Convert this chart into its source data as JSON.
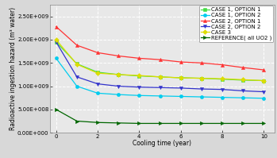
{
  "x": [
    0,
    1,
    2,
    3,
    4,
    5,
    6,
    7,
    8,
    9,
    10
  ],
  "case1_opt1": [
    1950000000.0,
    1480000000.0,
    1300000000.0,
    1250000000.0,
    1220000000.0,
    1200000000.0,
    1180000000.0,
    1170000000.0,
    1150000000.0,
    1130000000.0,
    1120000000.0
  ],
  "case1_opt2": [
    1600000000.0,
    1000000000.0,
    850000000.0,
    820000000.0,
    800000000.0,
    790000000.0,
    780000000.0,
    770000000.0,
    760000000.0,
    750000000.0,
    740000000.0
  ],
  "case2_opt1": [
    2280000000.0,
    1880000000.0,
    1720000000.0,
    1650000000.0,
    1600000000.0,
    1570000000.0,
    1520000000.0,
    1500000000.0,
    1460000000.0,
    1400000000.0,
    1350000000.0
  ],
  "case2_opt2": [
    1950000000.0,
    1200000000.0,
    1050000000.0,
    1000000000.0,
    980000000.0,
    970000000.0,
    960000000.0,
    940000000.0,
    930000000.0,
    900000000.0,
    880000000.0
  ],
  "case3": [
    2000000000.0,
    1470000000.0,
    1280000000.0,
    1250000000.0,
    1230000000.0,
    1200000000.0,
    1180000000.0,
    1170000000.0,
    1160000000.0,
    1140000000.0,
    1120000000.0
  ],
  "reference": [
    500000000.0,
    250000000.0,
    220000000.0,
    210000000.0,
    200000000.0,
    200000000.0,
    200000000.0,
    200000000.0,
    200000000.0,
    200000000.0,
    200000000.0
  ],
  "colors": {
    "case1_opt1": "#44dd44",
    "case1_opt2": "#00ccee",
    "case2_opt1": "#ff3333",
    "case2_opt2": "#3333cc",
    "case3": "#dddd00",
    "reference": "#006600"
  },
  "markers": {
    "case1_opt1": "s",
    "case1_opt2": "o",
    "case2_opt1": "^",
    "case2_opt2": "v",
    "case3": "D",
    "reference": ">"
  },
  "labels": {
    "case1_opt1": "CASE 1, OPTION 1",
    "case1_opt2": "CASE 1, OPTION 2",
    "case2_opt1": "CASE 2, OPTION 1",
    "case2_opt2": "CASE 2, OPTION 2",
    "case3": "CASE 3",
    "reference": "REFERENCE( all UO2 )"
  },
  "xlabel": "Cooling time (year)",
  "ylabel": "Radioactive ingestion hazard (m³ water)",
  "xlim": [
    -0.3,
    10.5
  ],
  "ylim": [
    0,
    2750000000.0
  ],
  "yticks": [
    0,
    500000000.0,
    1000000000.0,
    1500000000.0,
    2000000000.0,
    2500000000.0
  ],
  "ytick_labels": [
    "0.00E+000",
    "5.00E+008",
    "1.00E+009",
    "1.50E+009",
    "2.00E+009",
    "2.50E+009"
  ],
  "xticks": [
    0,
    2,
    4,
    6,
    8,
    10
  ],
  "plot_bg": "#e8e8e8",
  "fig_bg": "#d8d8d8",
  "grid_color": "#ffffff",
  "label_fontsize": 5.5,
  "tick_fontsize": 5.0,
  "legend_fontsize": 5.0,
  "linewidth": 0.9,
  "markersize": 3.0
}
